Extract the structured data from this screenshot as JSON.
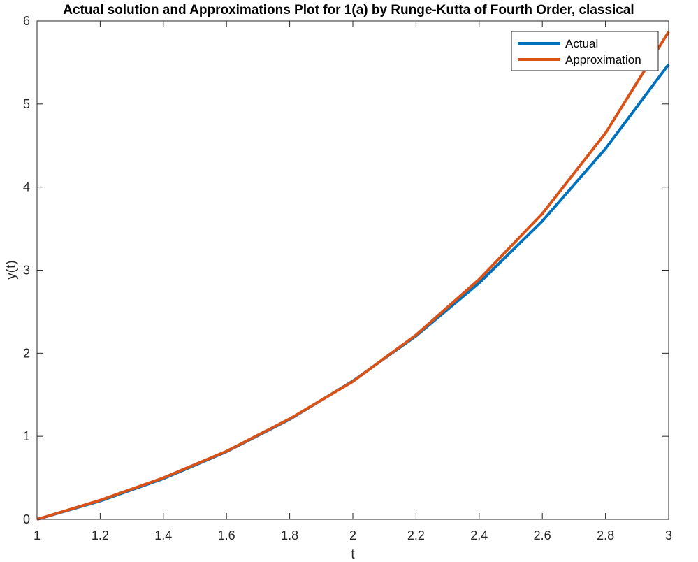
{
  "chart_data": {
    "type": "line",
    "title": "Actual solution and Approximations Plot for 1(a) by Runge-Kutta of Fourth Order, classical",
    "xlabel": "t",
    "ylabel": "y(t)",
    "xlim": [
      1,
      3
    ],
    "ylim": [
      0,
      6
    ],
    "xticks": [
      "1",
      "1.2",
      "1.4",
      "1.6",
      "1.8",
      "2",
      "2.2",
      "2.4",
      "2.6",
      "2.8",
      "3"
    ],
    "yticks": [
      "0",
      "1",
      "2",
      "3",
      "4",
      "5",
      "6"
    ],
    "grid": false,
    "legend_position": "top-right",
    "series": [
      {
        "name": "Actual",
        "color": "#0072BD",
        "x": [
          1,
          1.2,
          1.4,
          1.6,
          1.8,
          2.0,
          2.2,
          2.4,
          2.6,
          2.8,
          3.0
        ],
        "y": [
          0,
          0.221,
          0.49,
          0.815,
          1.204,
          1.665,
          2.208,
          2.846,
          3.591,
          4.463,
          5.479
        ]
      },
      {
        "name": "Approximation",
        "color": "#D95319",
        "x": [
          1,
          1.2,
          1.4,
          1.6,
          1.8,
          2.0,
          2.2,
          2.4,
          2.6,
          2.8,
          3.0
        ],
        "y": [
          0,
          0.23,
          0.5,
          0.82,
          1.21,
          1.66,
          2.22,
          2.89,
          3.68,
          4.65,
          5.87
        ]
      }
    ]
  }
}
